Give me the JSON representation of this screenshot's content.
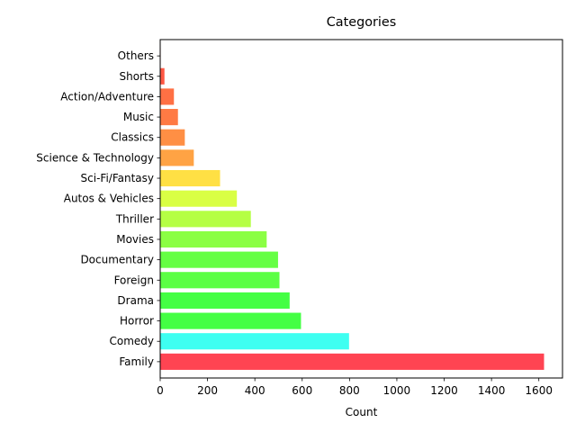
{
  "chart_data": {
    "type": "bar",
    "orientation": "horizontal",
    "title": "Categories",
    "xlabel": "Count",
    "ylabel": "",
    "xlim": [
      0,
      1700
    ],
    "x_ticks": [
      0,
      200,
      400,
      600,
      800,
      1000,
      1200,
      1400,
      1600
    ],
    "grid": false,
    "legend": "none",
    "categories": [
      "Family",
      "Comedy",
      "Horror",
      "Drama",
      "Foreign",
      "Documentary",
      "Movies",
      "Thriller",
      "Autos & Vehicles",
      "Sci-Fi/Fantasy",
      "Science & Technology",
      "Classics",
      "Music",
      "Action/Adventure",
      "Shorts",
      "Others"
    ],
    "values": [
      1622,
      798,
      595,
      547,
      504,
      498,
      450,
      383,
      324,
      253,
      142,
      104,
      75,
      58,
      18,
      2
    ],
    "colors": [
      "#ff4452",
      "#3efff1",
      "#44ff44",
      "#44ff44",
      "#5bff44",
      "#65ff44",
      "#8bff44",
      "#b5ff44",
      "#d9ff44",
      "#ffe044",
      "#ffa344",
      "#ff8f44",
      "#ff7a44",
      "#ff7044",
      "#ff5844",
      "#ff5044"
    ]
  }
}
